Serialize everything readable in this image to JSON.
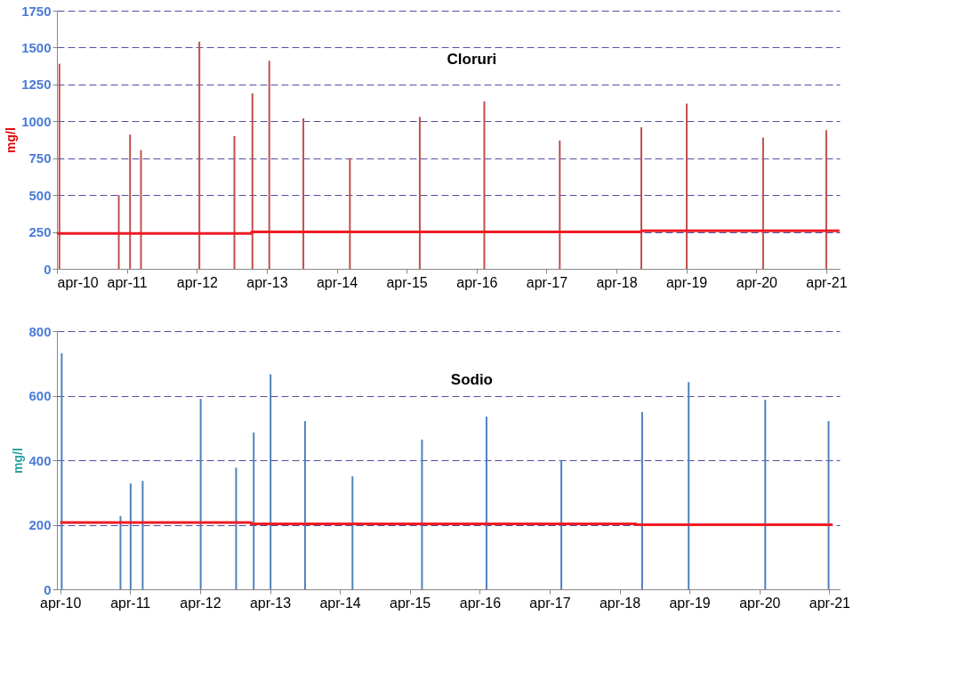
{
  "chart_data": [
    {
      "type": "bar",
      "title": "Cloruri",
      "ylabel": "mg/l",
      "grid": "y",
      "legend": false,
      "xlim": [
        "2010-04-01",
        "2021-06-10"
      ],
      "ylim": [
        0,
        1750
      ],
      "yticks": [
        0,
        250,
        500,
        750,
        1000,
        1250,
        1500,
        1750
      ],
      "xticks": [
        {
          "value": "2010-04",
          "label": "apr-10"
        },
        {
          "value": "2011-04",
          "label": "apr-11"
        },
        {
          "value": "2012-04",
          "label": "apr-12"
        },
        {
          "value": "2013-04",
          "label": "apr-13"
        },
        {
          "value": "2014-04",
          "label": "apr-14"
        },
        {
          "value": "2015-04",
          "label": "apr-15"
        },
        {
          "value": "2016-04",
          "label": "apr-16"
        },
        {
          "value": "2017-04",
          "label": "apr-17"
        },
        {
          "value": "2018-04",
          "label": "apr-18"
        },
        {
          "value": "2019-04",
          "label": "apr-19"
        },
        {
          "value": "2020-04",
          "label": "apr-20"
        },
        {
          "value": "2021-04",
          "label": "apr-21"
        }
      ],
      "series": [
        {
          "type": "bar",
          "color": "#c0504d",
          "x": [
            "2010-04-14",
            "2011-02-18",
            "2011-04-18",
            "2011-06-14",
            "2012-04-14",
            "2012-10-14",
            "2013-01-16",
            "2013-04-14",
            "2013-10-09",
            "2014-06-09",
            "2015-06-09",
            "2016-05-11",
            "2017-06-09",
            "2018-08-09",
            "2019-04-03",
            "2020-05-06",
            "2021-04-01"
          ],
          "values": [
            1390,
            500,
            910,
            805,
            1540,
            900,
            1190,
            1410,
            1020,
            750,
            1030,
            1135,
            870,
            960,
            1120,
            890,
            940
          ]
        },
        {
          "type": "step",
          "color": "#ee1c25",
          "x": [
            "2010-04-01",
            "2013-01-12",
            "2018-08-09",
            "2021-06-09"
          ],
          "values": [
            240,
            250,
            258,
            258
          ]
        }
      ]
    },
    {
      "type": "bar",
      "title": "Sodio",
      "ylabel": "mg/l",
      "grid": "y",
      "legend": false,
      "xlim": [
        "2010-03-15",
        "2021-05-25"
      ],
      "ylim": [
        0,
        800
      ],
      "yticks": [
        0,
        200,
        400,
        600,
        800
      ],
      "xticks": [
        {
          "value": "2010-04",
          "label": "apr-10"
        },
        {
          "value": "2011-04",
          "label": "apr-11"
        },
        {
          "value": "2012-04",
          "label": "apr-12"
        },
        {
          "value": "2013-04",
          "label": "apr-13"
        },
        {
          "value": "2014-04",
          "label": "apr-14"
        },
        {
          "value": "2015-04",
          "label": "apr-15"
        },
        {
          "value": "2016-04",
          "label": "apr-16"
        },
        {
          "value": "2017-04",
          "label": "apr-17"
        },
        {
          "value": "2018-04",
          "label": "apr-18"
        },
        {
          "value": "2019-04",
          "label": "apr-19"
        },
        {
          "value": "2020-04",
          "label": "apr-20"
        },
        {
          "value": "2021-04",
          "label": "apr-21"
        }
      ],
      "series": [
        {
          "type": "bar",
          "color": "#4f81bd",
          "x": [
            "2010-04-09",
            "2011-02-10",
            "2011-04-04",
            "2011-06-06",
            "2012-04-04",
            "2012-10-06",
            "2013-01-06",
            "2013-04-04",
            "2013-10-01",
            "2014-06-06",
            "2015-06-04",
            "2016-05-06",
            "2017-06-01",
            "2018-07-28",
            "2019-03-28",
            "2020-05-01",
            "2021-03-28"
          ],
          "values": [
            732,
            227,
            328,
            336,
            590,
            377,
            486,
            666,
            521,
            350,
            464,
            535,
            399,
            549,
            642,
            587,
            521
          ]
        },
        {
          "type": "step",
          "color": "#ee1c25",
          "x": [
            "2010-04-01",
            "2012-12-24",
            "2018-06-27",
            "2021-04-18"
          ],
          "values": [
            207,
            203,
            200,
            200
          ]
        }
      ]
    }
  ]
}
